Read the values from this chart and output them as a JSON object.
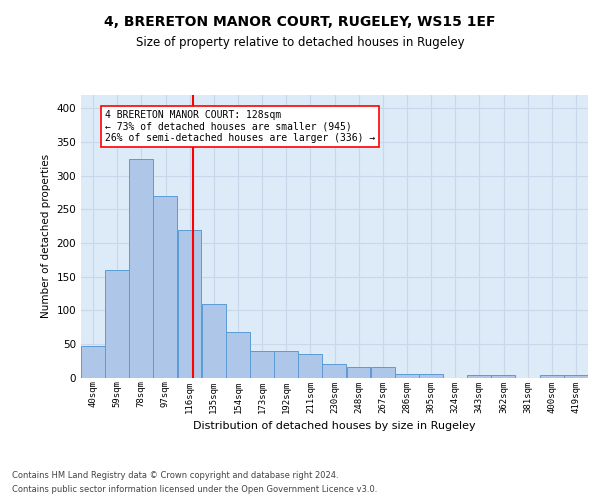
{
  "title1": "4, BRERETON MANOR COURT, RUGELEY, WS15 1EF",
  "title2": "Size of property relative to detached houses in Rugeley",
  "xlabel": "Distribution of detached houses by size in Rugeley",
  "ylabel": "Number of detached properties",
  "categories": [
    "40sqm",
    "59sqm",
    "78sqm",
    "97sqm",
    "116sqm",
    "135sqm",
    "154sqm",
    "173sqm",
    "192sqm",
    "211sqm",
    "230sqm",
    "248sqm",
    "267sqm",
    "286sqm",
    "305sqm",
    "324sqm",
    "343sqm",
    "362sqm",
    "381sqm",
    "400sqm",
    "419sqm"
  ],
  "values": [
    47,
    160,
    325,
    270,
    220,
    110,
    68,
    40,
    40,
    35,
    20,
    15,
    15,
    5,
    5,
    0,
    3,
    3,
    0,
    3,
    3
  ],
  "bar_color": "#aec6e8",
  "bar_edge_color": "#5b9bd5",
  "bar_linewidth": 0.7,
  "grid_color": "#c8d8ea",
  "bg_color": "#ddeaf7",
  "property_line_color": "red",
  "annotation_text": "4 BRERETON MANOR COURT: 128sqm\n← 73% of detached houses are smaller (945)\n26% of semi-detached houses are larger (336) →",
  "annotation_box_color": "white",
  "annotation_box_edge": "red",
  "footer1": "Contains HM Land Registry data © Crown copyright and database right 2024.",
  "footer2": "Contains public sector information licensed under the Open Government Licence v3.0.",
  "ylim": [
    0,
    420
  ],
  "yticks": [
    0,
    50,
    100,
    150,
    200,
    250,
    300,
    350,
    400
  ],
  "bin_width": 19
}
